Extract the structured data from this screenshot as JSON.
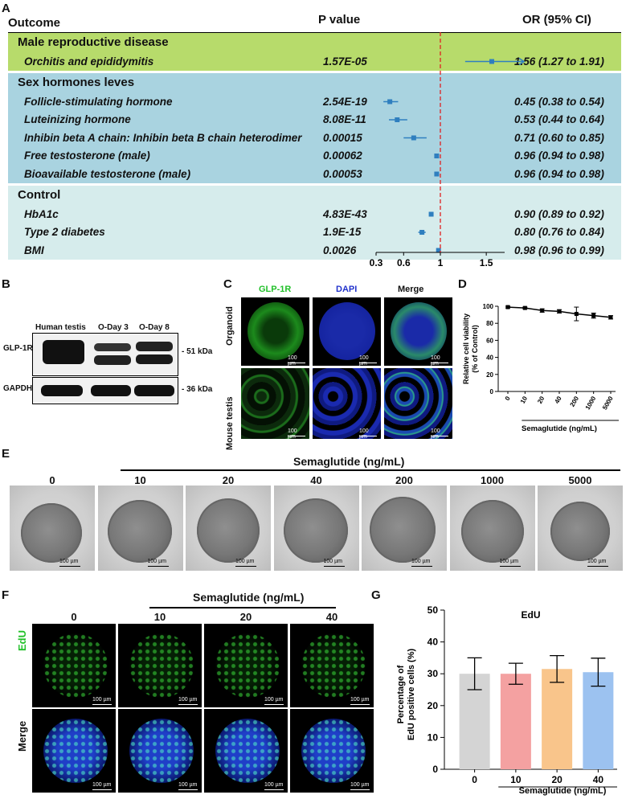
{
  "panel_labels": {
    "a": "A",
    "b": "B",
    "c": "C",
    "d": "D",
    "e": "E",
    "f": "F",
    "g": "G"
  },
  "panel_a": {
    "col_outcome": "Outcome",
    "col_p": "P value",
    "col_or": "OR (95% CI)",
    "axis_ticks": [
      "0.3",
      "0.6",
      "1",
      "1.5"
    ],
    "groups": [
      {
        "title": "Male reproductive disease",
        "color": "#b7db6b",
        "rows": [
          {
            "name": "Orchitis and epididymitis",
            "p": "1.57E-05",
            "or_text": "1.56 (1.27 to 1.91)",
            "or": 1.56,
            "lo": 1.27,
            "hi": 1.91,
            "arrow": true
          }
        ]
      },
      {
        "title": "Sex hormones leves",
        "color": "#a9d3e0",
        "rows": [
          {
            "name": "Follicle-stimulating hormone",
            "p": "2.54E-19",
            "or_text": "0.45 (0.38 to 0.54)",
            "or": 0.45,
            "lo": 0.38,
            "hi": 0.54
          },
          {
            "name": "Luteinizing hormone",
            "p": "8.08E-11",
            "or_text": "0.53 (0.44 to 0.64)",
            "or": 0.53,
            "lo": 0.44,
            "hi": 0.64
          },
          {
            "name": "Inhibin beta A chain: Inhibin beta B chain heterodimer",
            "p": "0.00015",
            "or_text": "0.71 (0.60 to 0.85)",
            "or": 0.71,
            "lo": 0.6,
            "hi": 0.85
          },
          {
            "name": "Free testosterone (male)",
            "p": "0.00062",
            "or_text": "0.96 (0.94 to 0.98)",
            "or": 0.96,
            "lo": 0.94,
            "hi": 0.98
          },
          {
            "name": "Bioavailable testosterone (male)",
            "p": "0.00053",
            "or_text": "0.96 (0.94 to 0.98)",
            "or": 0.96,
            "lo": 0.94,
            "hi": 0.98
          }
        ]
      },
      {
        "title": "Control",
        "color": "#d6ecec",
        "rows": [
          {
            "name": "HbA1c",
            "p": "4.83E-43",
            "or_text": "0.90 (0.89 to 0.92)",
            "or": 0.9,
            "lo": 0.89,
            "hi": 0.92
          },
          {
            "name": "Type 2 diabetes",
            "p": "1.9E-15",
            "or_text": "0.80 (0.76 to 0.84)",
            "or": 0.8,
            "lo": 0.76,
            "hi": 0.84
          },
          {
            "name": "BMI",
            "p": "0.0026",
            "or_text": "0.98 (0.96 to 0.99)",
            "or": 0.98,
            "lo": 0.96,
            "hi": 0.99
          }
        ]
      }
    ]
  },
  "panel_b": {
    "lanes": [
      "Human testis",
      "O-Day 3",
      "O-Day 8"
    ],
    "blots": [
      {
        "name": "GLP-1R",
        "size": "51 kDa"
      },
      {
        "name": "GAPDH",
        "size": "36 kDa"
      }
    ]
  },
  "panel_c": {
    "channels": [
      "GLP-1R",
      "DAPI",
      "Merge"
    ],
    "channel_colors": [
      "#22c02a",
      "#2233cc",
      "#111111"
    ],
    "rows": [
      "Organoid",
      "Mouse testis"
    ],
    "scale": "100 µm"
  },
  "panel_e": {
    "header": "Semaglutide (ng/mL)",
    "doses": [
      "0",
      "10",
      "20",
      "40",
      "200",
      "1000",
      "5000"
    ],
    "scale": "100 µm"
  },
  "panel_f": {
    "header": "Semaglutide (ng/mL)",
    "doses": [
      "0",
      "10",
      "20",
      "40"
    ],
    "rows": [
      "EdU",
      "Merge"
    ],
    "scale": "100 µm"
  },
  "chart_data": [
    {
      "type": "line",
      "panel": "D",
      "categories": [
        "0",
        "10",
        "20",
        "40",
        "200",
        "1000",
        "5000"
      ],
      "values": [
        99,
        98,
        95,
        94,
        91,
        89,
        87
      ],
      "errors": [
        1,
        1,
        2,
        2,
        8,
        3,
        2
      ],
      "ylabel": "Relative cell viability (% of Control)",
      "xlabel": "Semaglutide (ng/mL)",
      "ylim": [
        0,
        100
      ],
      "yticks": [
        "0",
        "20",
        "40",
        "60",
        "80",
        "100"
      ]
    },
    {
      "type": "bar",
      "panel": "G",
      "title": "EdU",
      "categories": [
        "0",
        "10",
        "20",
        "40"
      ],
      "values": [
        30,
        30,
        31.5,
        30.5
      ],
      "errors": [
        5,
        3.3,
        4.2,
        4.4
      ],
      "colors": [
        "#d4d4d4",
        "#f4a1a1",
        "#f9c58b",
        "#9cc2f0"
      ],
      "ylabel": "Percentage of EdU positive cells (%)",
      "xlabel": "Semaglutide (ng/mL)",
      "ylim": [
        0,
        50
      ],
      "yticks": [
        "0",
        "10",
        "20",
        "30",
        "40",
        "50"
      ]
    }
  ]
}
